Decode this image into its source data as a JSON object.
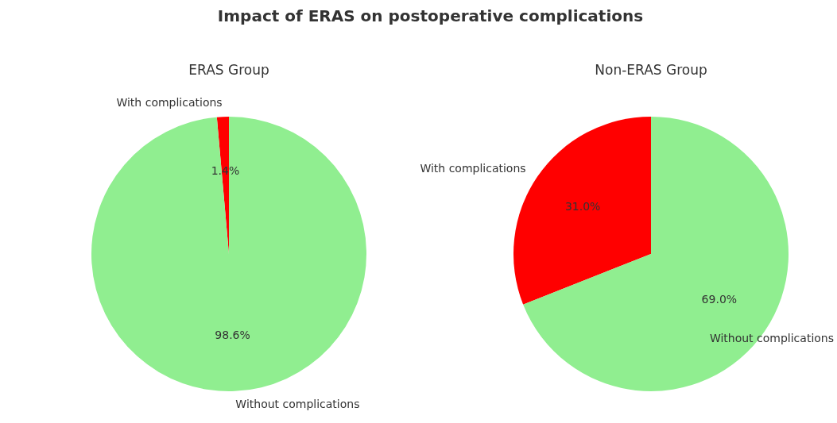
{
  "chart_data": [
    {
      "type": "other",
      "title": "Impact of ERAS on postoperative complications"
    },
    {
      "type": "pie",
      "title": "ERAS Group",
      "categories": [
        "With complications",
        "Without complications"
      ],
      "values": [
        1.4,
        98.6
      ],
      "colors": [
        "#ff0000",
        "#90ee90"
      ],
      "value_labels": [
        "1.4%",
        "98.6%"
      ]
    },
    {
      "type": "pie",
      "title": "Non-ERAS Group",
      "categories": [
        "With complications",
        "Without complications"
      ],
      "values": [
        31.0,
        69.0
      ],
      "colors": [
        "#ff0000",
        "#90ee90"
      ],
      "value_labels": [
        "31.0%",
        "69.0%"
      ]
    }
  ]
}
